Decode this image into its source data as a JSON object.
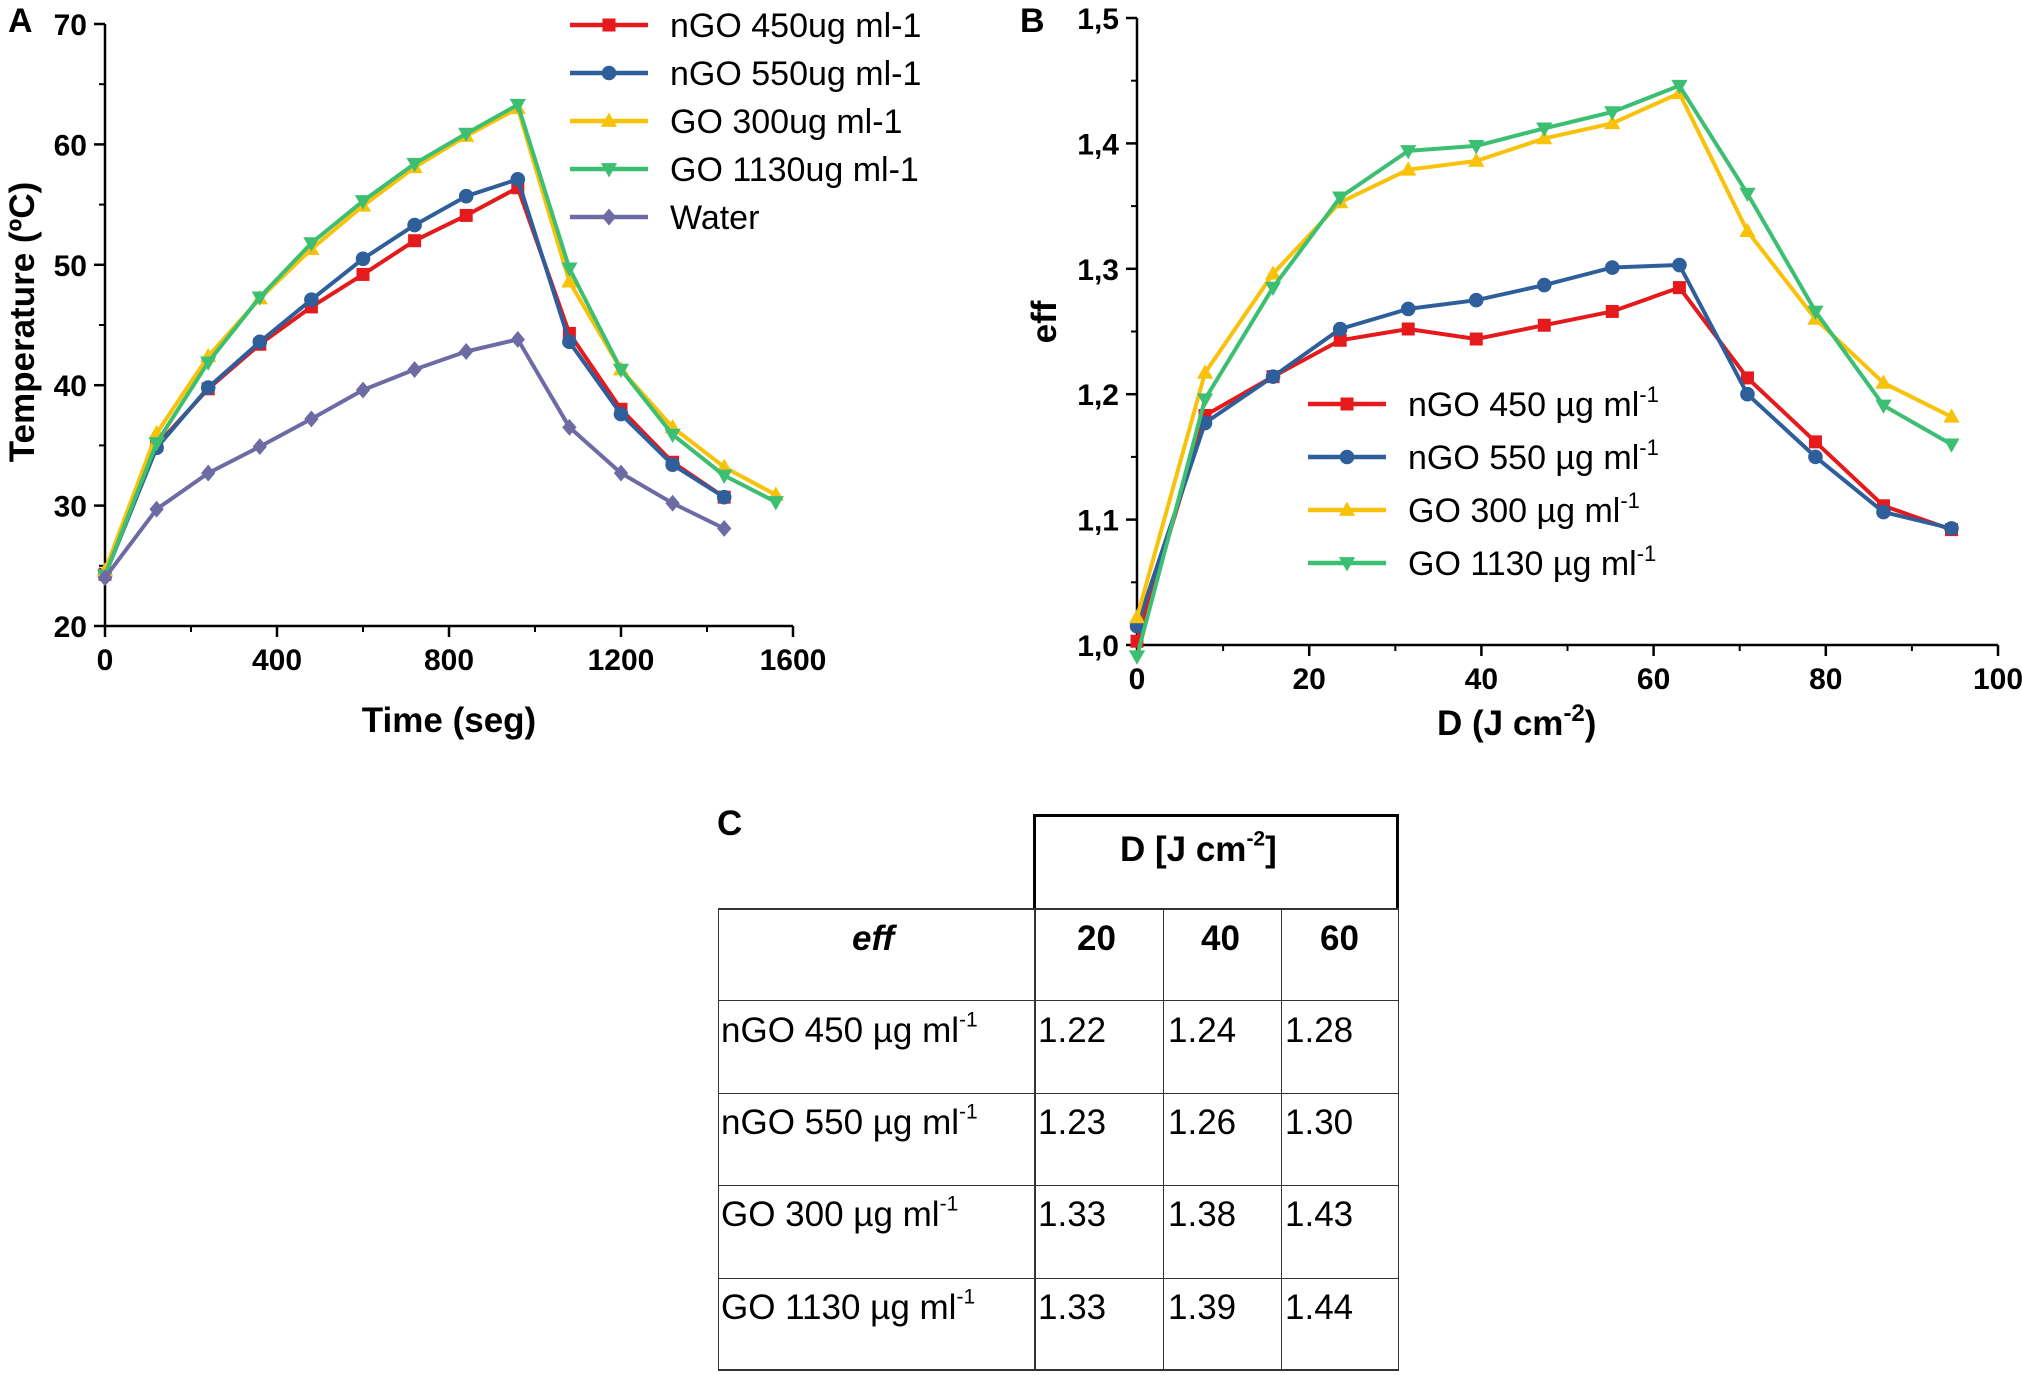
{
  "panels": {
    "a": "A",
    "b": "B",
    "c": "C"
  },
  "chart_data": [
    {
      "type": "line",
      "panel": "A",
      "title": "",
      "xlabel": "Time (seg)",
      "ylabel": "Temperature (ºC)",
      "xlim": [
        0,
        1600
      ],
      "ylim": [
        20,
        70
      ],
      "xticks": [
        0,
        400,
        800,
        1200,
        1600
      ],
      "yticks": [
        20,
        30,
        40,
        50,
        60,
        70
      ],
      "legend_position": "top-right",
      "series": [
        {
          "name": "nGO 450ug ml-1",
          "color": "#e41a1c",
          "marker": "square",
          "x": [
            0,
            120,
            240,
            360,
            480,
            600,
            720,
            840,
            960,
            1080,
            1200,
            1320,
            1440
          ],
          "y": [
            24.3,
            35.0,
            39.7,
            43.4,
            46.5,
            49.2,
            52.0,
            54.1,
            56.4,
            44.3,
            38.0,
            33.6,
            30.7
          ]
        },
        {
          "name": "nGO 550ug ml-1",
          "color": "#2e5f9a",
          "marker": "circle",
          "x": [
            0,
            120,
            240,
            360,
            480,
            600,
            720,
            840,
            960,
            1080,
            1200,
            1320,
            1440
          ],
          "y": [
            24.2,
            34.8,
            39.8,
            43.6,
            47.1,
            50.5,
            53.3,
            55.7,
            57.1,
            43.6,
            37.6,
            33.4,
            30.7
          ]
        },
        {
          "name": "GO 300ug ml-1",
          "color": "#f9c20a",
          "marker": "triangle-up",
          "x": [
            0,
            120,
            240,
            360,
            480,
            600,
            720,
            840,
            960,
            1080,
            1200,
            1320,
            1440,
            1560
          ],
          "y": [
            24.6,
            36.0,
            42.4,
            47.2,
            51.3,
            54.9,
            58.1,
            60.7,
            63.0,
            48.6,
            41.3,
            36.5,
            33.2,
            30.9
          ]
        },
        {
          "name": "GO 1130ug ml-1",
          "color": "#3cbf72",
          "marker": "triangle-down",
          "x": [
            0,
            120,
            240,
            360,
            480,
            600,
            720,
            840,
            960,
            1080,
            1200,
            1320,
            1440,
            1560
          ],
          "y": [
            24.2,
            35.2,
            41.9,
            47.3,
            51.8,
            55.3,
            58.4,
            60.9,
            63.3,
            49.7,
            41.3,
            35.9,
            32.5,
            30.3
          ]
        },
        {
          "name": "Water",
          "color": "#6e6aa3",
          "marker": "diamond",
          "x": [
            0,
            120,
            240,
            360,
            480,
            600,
            720,
            840,
            960,
            1080,
            1200,
            1320,
            1440
          ],
          "y": [
            24.0,
            29.7,
            32.7,
            34.9,
            37.2,
            39.6,
            41.3,
            42.8,
            43.8,
            36.5,
            32.7,
            30.2,
            28.1
          ]
        }
      ]
    },
    {
      "type": "line",
      "panel": "B",
      "title": "",
      "xlabel": "D (J cm",
      "xlabel_sup": "-2",
      "xlabel_end": ")",
      "ylabel": "eff",
      "xlim": [
        0,
        100
      ],
      "ylim": [
        1.0,
        1.5
      ],
      "xticks": [
        "0",
        "20",
        "40",
        "60",
        "80",
        "100"
      ],
      "yticks": [
        "1,0",
        "1,1",
        "1,2",
        "1,3",
        "1,4",
        "1,5"
      ],
      "legend_position": "center",
      "legend_sup": "-1",
      "series": [
        {
          "name": "nGO 450 µg ml",
          "color": "#e41a1c",
          "marker": "square",
          "x": [
            0,
            7.9,
            15.8,
            23.6,
            31.5,
            39.4,
            47.3,
            55.2,
            63.0,
            70.9,
            78.8,
            86.7,
            94.6
          ],
          "y": [
            1.003,
            1.183,
            1.214,
            1.243,
            1.252,
            1.244,
            1.255,
            1.266,
            1.285,
            1.213,
            1.162,
            1.111,
            1.092
          ]
        },
        {
          "name": "nGO 550 µg ml",
          "color": "#2e5f9a",
          "marker": "circle",
          "x": [
            0,
            7.9,
            15.8,
            23.6,
            31.5,
            39.4,
            47.3,
            55.2,
            63.0,
            70.9,
            78.8,
            86.7,
            94.6
          ],
          "y": [
            1.015,
            1.177,
            1.214,
            1.252,
            1.268,
            1.275,
            1.287,
            1.301,
            1.303,
            1.2,
            1.15,
            1.106,
            1.093
          ]
        },
        {
          "name": "GO 300 µg ml",
          "color": "#f9c20a",
          "marker": "triangle-up",
          "x": [
            0,
            7.9,
            15.8,
            23.6,
            31.5,
            39.4,
            47.3,
            55.2,
            63.0,
            70.9,
            78.8,
            86.7,
            94.6
          ],
          "y": [
            1.022,
            1.217,
            1.296,
            1.353,
            1.379,
            1.386,
            1.404,
            1.416,
            1.44,
            1.33,
            1.26,
            1.209,
            1.182
          ]
        },
        {
          "name": "GO 1130 µg ml",
          "color": "#3cbf72",
          "marker": "triangle-down",
          "x": [
            0,
            7.9,
            15.8,
            23.6,
            31.5,
            39.4,
            47.3,
            55.2,
            63.0,
            70.9,
            78.8,
            86.7,
            94.6
          ],
          "y": [
            0.991,
            1.196,
            1.285,
            1.357,
            1.394,
            1.398,
            1.412,
            1.425,
            1.446,
            1.36,
            1.266,
            1.191,
            1.16
          ]
        }
      ]
    },
    {
      "type": "table",
      "panel": "C",
      "group_header": "D [J cm",
      "group_header_sup": "-2",
      "group_header_end": "]",
      "corner": "eff",
      "columns": [
        "20",
        "40",
        "60"
      ],
      "unit_sup": "-1",
      "rows": [
        {
          "label": "nGO 450 µg ml",
          "values": [
            "1.22",
            "1.24",
            "1.28"
          ]
        },
        {
          "label": "nGO 550 µg ml",
          "values": [
            "1.23",
            "1.26",
            "1.30"
          ]
        },
        {
          "label": "GO 300 µg ml",
          "values": [
            "1.33",
            "1.38",
            "1.43"
          ]
        },
        {
          "label": "GO 1130 µg ml",
          "values": [
            "1.33",
            "1.39",
            "1.44"
          ]
        }
      ]
    }
  ]
}
